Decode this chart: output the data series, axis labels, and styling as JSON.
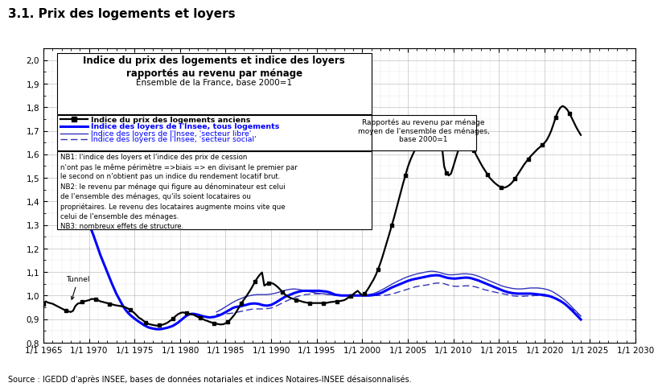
{
  "title_above": "3.1. Prix des logements et loyers",
  "box_title_line1": "Indice du prix des logements et indice des loyers",
  "box_title_line2": "rapportés au revenu par ménage",
  "box_subtitle": "Ensemble de la France, base 2000=1",
  "source_text": "Source : IGEDD d'après INSEE, bases de données notariales et indices Notaires-INSEE désaisonnalisés.",
  "ylim": [
    0.8,
    2.05
  ],
  "xlim_start": 1965.0,
  "xlim_end": 2030.0,
  "yticks": [
    0.8,
    0.9,
    1.0,
    1.1,
    1.2,
    1.3,
    1.4,
    1.5,
    1.6,
    1.7,
    1.8,
    1.9,
    2.0
  ],
  "xticks": [
    1965,
    1970,
    1975,
    1980,
    1985,
    1990,
    1995,
    2000,
    2005,
    2010,
    2015,
    2020,
    2025,
    2030
  ],
  "tunnel_label": "Tunnel",
  "note_text": "NB1: l'indice des loyers et l'indice des prix de cession\nn'ont pas le même périmètre =>biais => en divisant le premier par\nle second on n'obtient pas un indice du rendement locatif brut.\nNB2: le revenu par ménage qui figure au dénominateur est celui\nde l'ensemble des ménages, qu'ils soient locataires ou\npropriétaires. Le revenu des locataires augmente moins vite que\ncelui de l'ensemble des ménages.\nNB3: nombreux effets de structure.",
  "rapportes_text": "Rapportés au revenu par ménage\nmoyen de l'ensemble des ménages,\nbase 2000=1",
  "background_color": "#ffffff",
  "grid_color": "#999999",
  "line_logements_color": "#000000",
  "line_tous_loyers_color": "#0000ff",
  "line_libre_color": "#3333bb",
  "line_social_color": "#3333bb",
  "legend_entry1": "Indice du prix des logements anciens",
  "legend_entry2": "Indice des loyers de l'Insee, tous logements",
  "legend_entry3": "Indice des loyers de l'Insee, 'secteur libre'",
  "legend_entry4": "Indice des loyers de l'Insee, 'secteur social'"
}
